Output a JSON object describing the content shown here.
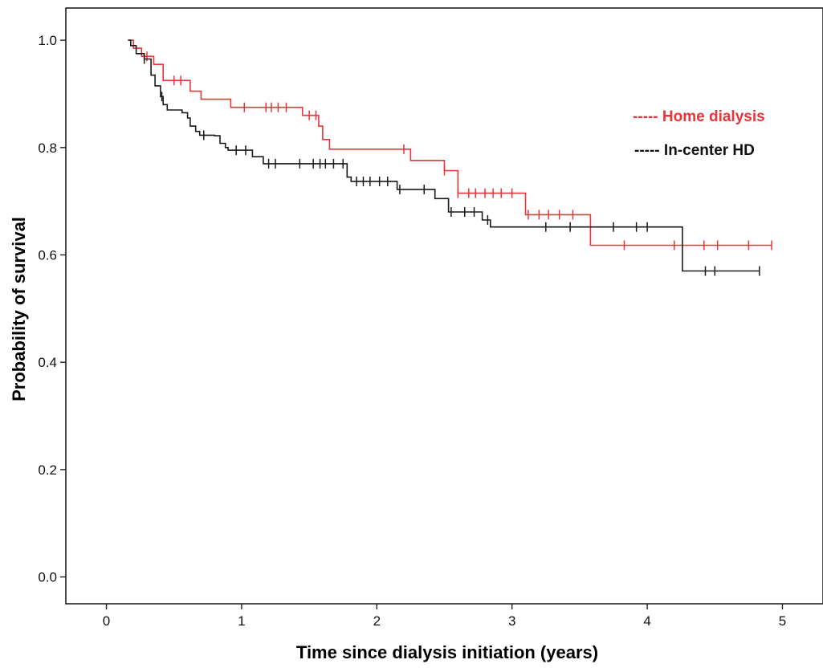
{
  "chart_data": {
    "type": "line",
    "title": "",
    "xlabel": "Time since dialysis initiation (years)",
    "ylabel": "Probability of survival",
    "xlim": [
      -0.3,
      5.3
    ],
    "ylim": [
      -0.05,
      1.06
    ],
    "xticks": [
      0,
      1,
      2,
      3,
      4,
      5
    ],
    "yticks": [
      0.0,
      0.2,
      0.4,
      0.6,
      0.8,
      1.0
    ],
    "xtick_labels": [
      "0",
      "1",
      "2",
      "3",
      "4",
      "5"
    ],
    "ytick_labels": [
      "0.0",
      "0.2",
      "0.4",
      "0.6",
      "0.8",
      "1.0"
    ],
    "grid": false,
    "legend_position": "top-right",
    "series": [
      {
        "name": "Home dialysis",
        "legend_label": "----- Home dialysis",
        "color": "#e8343a",
        "steps": [
          [
            0.16,
            1.0
          ],
          [
            0.2,
            0.985
          ],
          [
            0.26,
            0.97
          ],
          [
            0.35,
            0.955
          ],
          [
            0.42,
            0.925
          ],
          [
            0.62,
            0.905
          ],
          [
            0.7,
            0.89
          ],
          [
            0.92,
            0.875
          ],
          [
            1.45,
            0.86
          ],
          [
            1.57,
            0.84
          ],
          [
            1.6,
            0.815
          ],
          [
            1.65,
            0.797
          ],
          [
            2.25,
            0.776
          ],
          [
            2.5,
            0.757
          ],
          [
            2.6,
            0.715
          ],
          [
            3.1,
            0.675
          ],
          [
            3.58,
            0.618
          ],
          [
            4.92,
            0.618
          ]
        ],
        "censor_times": [
          0.3,
          0.5,
          0.55,
          1.02,
          1.18,
          1.22,
          1.27,
          1.33,
          1.5,
          1.55,
          2.2,
          2.5,
          2.6,
          2.68,
          2.73,
          2.8,
          2.86,
          2.92,
          3.0,
          3.12,
          3.2,
          3.27,
          3.35,
          3.45,
          3.83,
          4.2,
          4.42,
          4.52,
          4.75,
          4.92
        ]
      },
      {
        "name": "In-center HD",
        "legend_label": "----- In-center HD",
        "color": "#1a1a1a",
        "steps": [
          [
            0.16,
            1.0
          ],
          [
            0.18,
            0.99
          ],
          [
            0.22,
            0.975
          ],
          [
            0.28,
            0.965
          ],
          [
            0.33,
            0.935
          ],
          [
            0.36,
            0.915
          ],
          [
            0.4,
            0.895
          ],
          [
            0.42,
            0.88
          ],
          [
            0.45,
            0.87
          ],
          [
            0.56,
            0.865
          ],
          [
            0.6,
            0.855
          ],
          [
            0.62,
            0.84
          ],
          [
            0.66,
            0.83
          ],
          [
            0.69,
            0.823
          ],
          [
            0.8,
            0.822
          ],
          [
            0.84,
            0.808
          ],
          [
            0.88,
            0.8
          ],
          [
            0.9,
            0.795
          ],
          [
            1.08,
            0.783
          ],
          [
            1.16,
            0.77
          ],
          [
            1.78,
            0.745
          ],
          [
            1.81,
            0.737
          ],
          [
            2.15,
            0.722
          ],
          [
            2.43,
            0.705
          ],
          [
            2.53,
            0.68
          ],
          [
            2.78,
            0.665
          ],
          [
            2.84,
            0.652
          ],
          [
            4.26,
            0.57
          ],
          [
            4.83,
            0.57
          ]
        ],
        "censor_times": [
          0.28,
          0.41,
          0.72,
          0.96,
          1.03,
          1.2,
          1.25,
          1.43,
          1.53,
          1.58,
          1.62,
          1.68,
          1.75,
          1.85,
          1.9,
          1.95,
          2.02,
          2.08,
          2.17,
          2.35,
          2.55,
          2.65,
          2.72,
          2.82,
          3.25,
          3.43,
          3.75,
          3.92,
          4.0,
          4.43,
          4.5,
          4.83
        ]
      }
    ]
  }
}
